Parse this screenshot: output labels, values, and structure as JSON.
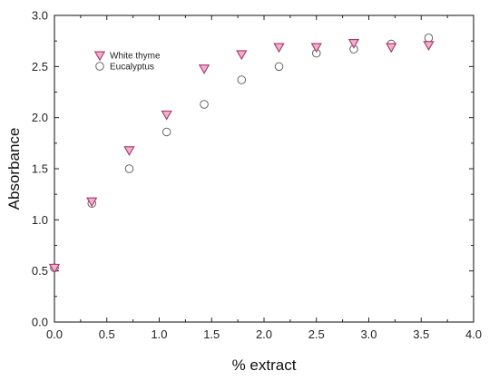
{
  "chart_data": {
    "type": "scatter",
    "title": "",
    "xlabel": "% extract",
    "ylabel": "Absorbance",
    "xlim": [
      0.0,
      4.0
    ],
    "ylim": [
      0.0,
      3.0
    ],
    "xticks": [
      "0.0",
      "0.5",
      "1.0",
      "1.5",
      "2.0",
      "2.5",
      "3.0",
      "3.5",
      "4.0"
    ],
    "yticks": [
      "0.0",
      "0.5",
      "1.0",
      "1.5",
      "2.0",
      "2.5",
      "3.0"
    ],
    "grid": false,
    "legend_position": "top-left",
    "series": [
      {
        "name": "White thyme",
        "marker": "triangle-down",
        "color": "#b0306a",
        "fill": "#e9b3cf",
        "x": [
          0.0,
          0.357,
          0.714,
          1.071,
          1.429,
          1.786,
          2.143,
          2.5,
          2.857,
          3.214,
          3.571
        ],
        "y": [
          0.53,
          1.18,
          1.68,
          2.03,
          2.48,
          2.62,
          2.69,
          2.69,
          2.73,
          2.69,
          2.71
        ]
      },
      {
        "name": "Eucalyptus",
        "marker": "circle",
        "color": "#555555",
        "fill": "none",
        "x": [
          0.0,
          0.357,
          0.714,
          1.071,
          1.429,
          1.786,
          2.143,
          2.5,
          2.857,
          3.214,
          3.571
        ],
        "y": [
          0.53,
          1.16,
          1.5,
          1.86,
          2.13,
          2.37,
          2.5,
          2.63,
          2.67,
          2.72,
          2.78
        ]
      }
    ]
  }
}
